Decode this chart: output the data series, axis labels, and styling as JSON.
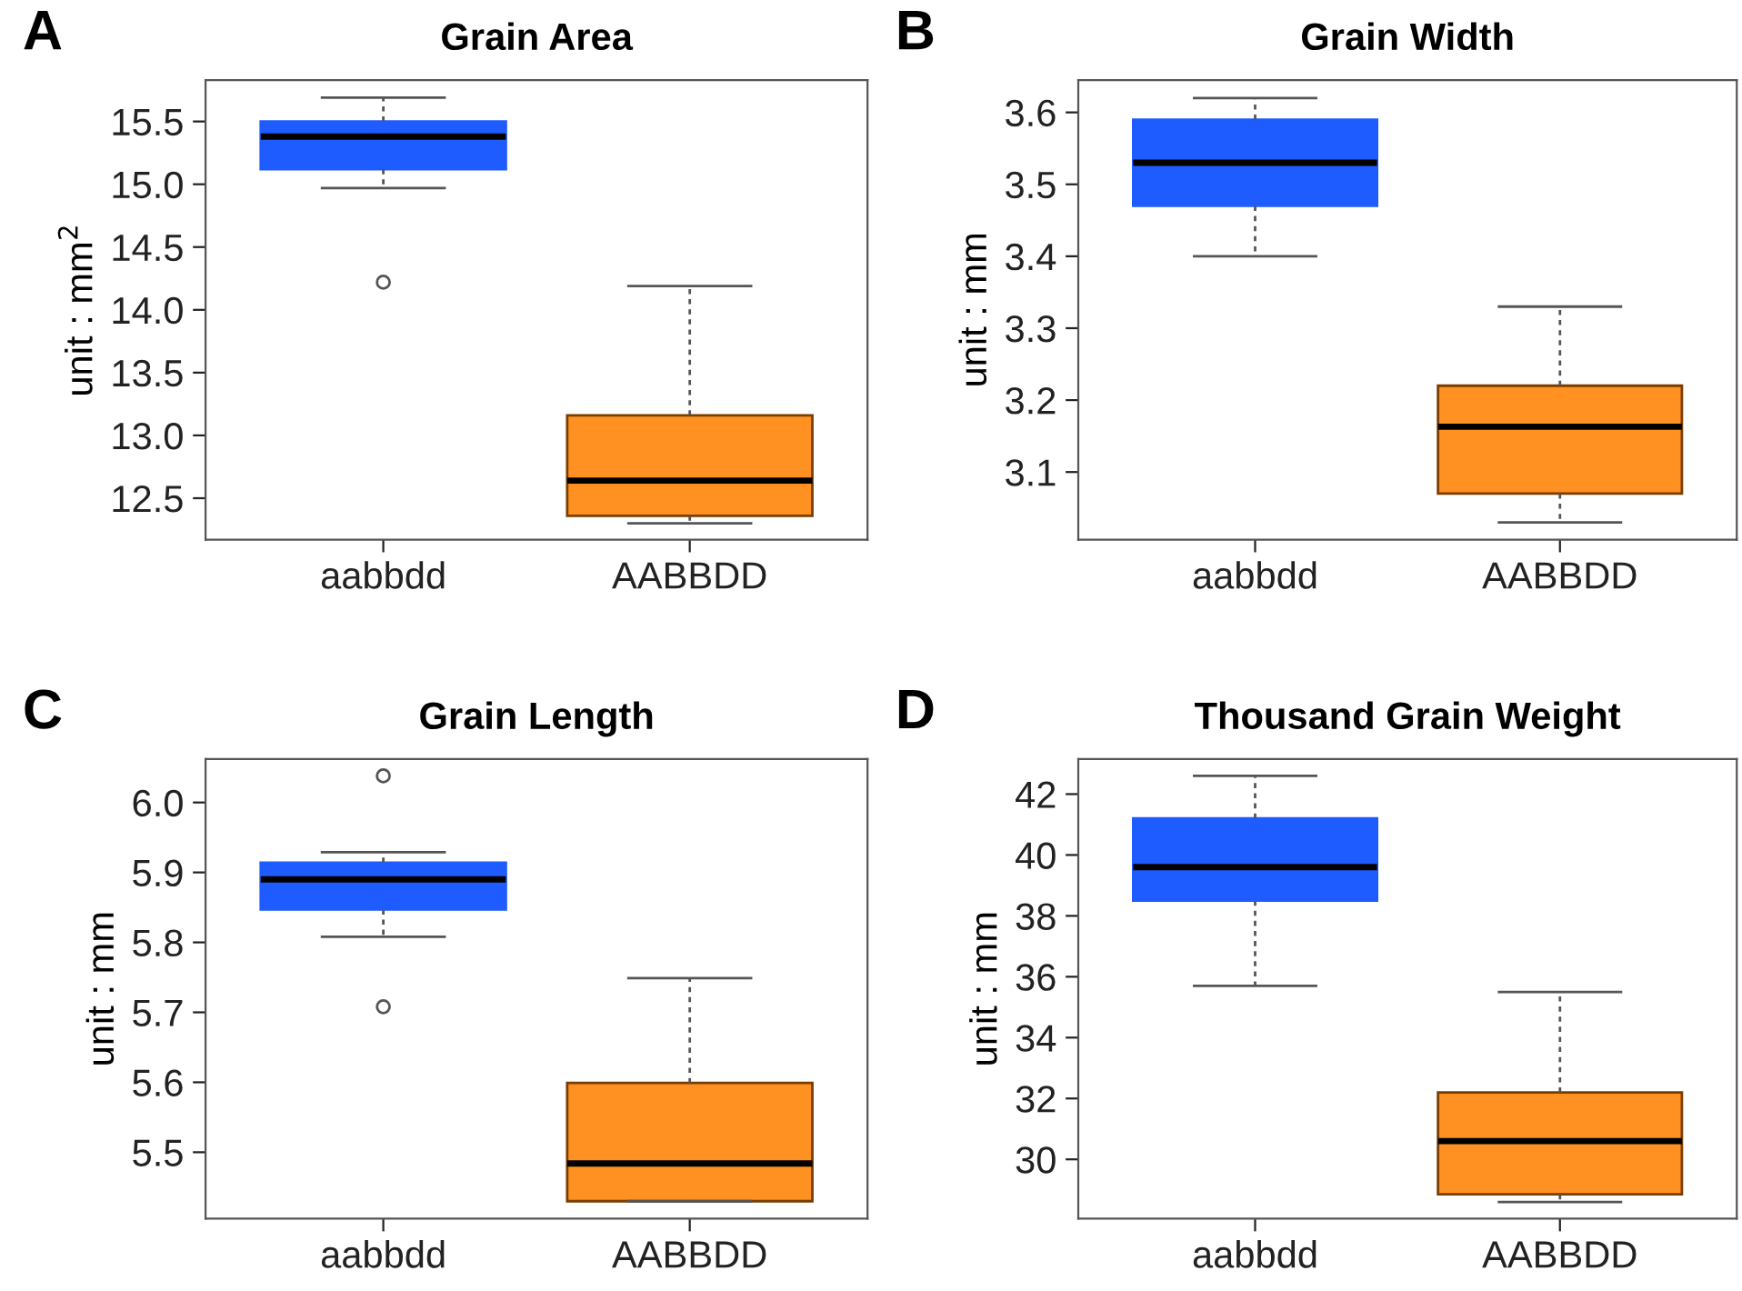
{
  "chart_data": [
    {
      "type": "box",
      "title": "Grain Area",
      "ylabel": "unit : mm$^{2}$",
      "annotations": [
        "A"
      ],
      "categories": [
        "aabbdd",
        "AABBDD"
      ],
      "colors": [
        "#1f5cff",
        "#ff9022"
      ],
      "ylim": [
        12.17,
        15.83
      ],
      "yticks": [
        12.5,
        {
          "value": 13,
          "label": "13.0"
        },
        13.5,
        {
          "value": 14,
          "label": "14.0"
        },
        14.5,
        {
          "value": 15,
          "label": "15.0"
        },
        15.5
      ],
      "boxes": [
        {
          "low": 14.97,
          "q1": 15.12,
          "median": 15.38,
          "q3": 15.5,
          "high": 15.69,
          "outliers": [
            14.22
          ]
        },
        {
          "low": 12.3,
          "q1": 12.36,
          "median": 12.64,
          "q3": 13.16,
          "high": 14.19
        }
      ]
    },
    {
      "type": "box",
      "title": "Grain Width",
      "ylabel": "unit : mm",
      "annotations": [
        "B"
      ],
      "categories": [
        "aabbdd",
        "AABBDD"
      ],
      "colors": [
        "#1f5cff",
        "#ff9022"
      ],
      "ylim": [
        3.006,
        3.645
      ],
      "yticks": [
        3.1,
        3.2,
        3.3,
        3.4,
        3.5,
        3.6
      ],
      "boxes": [
        {
          "low": 3.4,
          "q1": 3.47,
          "median": 3.53,
          "q3": 3.59,
          "high": 3.62
        },
        {
          "low": 3.03,
          "q1": 3.07,
          "median": 3.163,
          "q3": 3.22,
          "high": 3.33
        }
      ]
    },
    {
      "type": "box",
      "title": "Grain Length",
      "ylabel": "unit : mm",
      "annotations": [
        "C"
      ],
      "categories": [
        "aabbdd",
        "AABBDD"
      ],
      "colors": [
        "#1f5cff",
        "#ff9022"
      ],
      "ylim": [
        5.405,
        6.062
      ],
      "yticks": [
        5.5,
        5.6,
        5.7,
        5.8,
        5.9,
        {
          "value": 6,
          "label": "6.0"
        }
      ],
      "boxes": [
        {
          "low": 5.808,
          "q1": 5.847,
          "median": 5.89,
          "q3": 5.914,
          "high": 5.929,
          "outliers": [
            6.038,
            5.708
          ]
        },
        {
          "low": 5.43,
          "q1": 5.43,
          "median": 5.484,
          "q3": 5.599,
          "high": 5.749
        }
      ]
    },
    {
      "type": "box",
      "title": "Thousand Grain Weight",
      "ylabel": "unit : mm",
      "annotations": [
        "D"
      ],
      "categories": [
        "aabbdd",
        "AABBDD"
      ],
      "colors": [
        "#1f5cff",
        "#ff9022"
      ],
      "ylim": [
        28.05,
        43.15
      ],
      "yticks": [
        30,
        32,
        34,
        36,
        38,
        40,
        42
      ],
      "boxes": [
        {
          "low": 35.7,
          "q1": 38.5,
          "median": 39.6,
          "q3": 41.2,
          "high": 42.6
        },
        {
          "low": 28.6,
          "q1": 28.85,
          "median": 30.6,
          "q3": 32.2,
          "high": 35.5
        }
      ]
    }
  ]
}
